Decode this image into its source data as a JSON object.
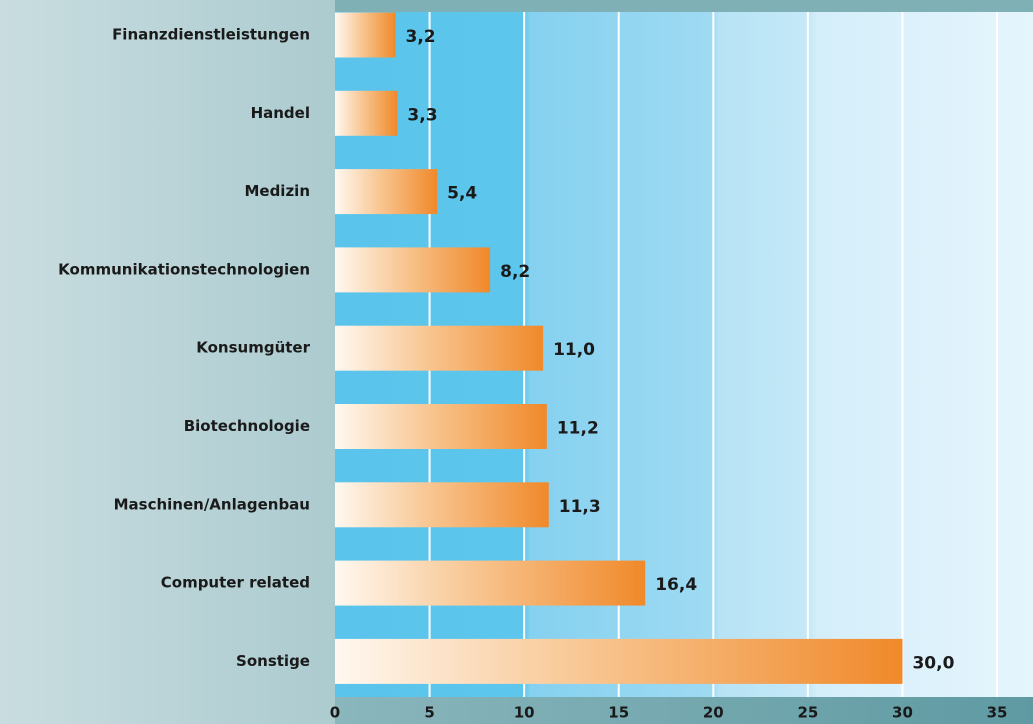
{
  "chart_data": {
    "type": "bar",
    "orientation": "horizontal",
    "categories": [
      "Finanzdienstleistungen",
      "Handel",
      "Medizin",
      "Kommunikationstechnologien",
      "Konsumgüter",
      "Biotechnologie",
      "Maschinen/Anlagenbau",
      "Computer related",
      "Sonstige"
    ],
    "values": [
      3.2,
      3.3,
      5.4,
      8.2,
      11.0,
      11.2,
      11.3,
      16.4,
      30.0
    ],
    "value_labels": [
      "3,2",
      "3,3",
      "5,4",
      "8,2",
      "11,0",
      "11,2",
      "11,3",
      "16,4",
      "30,0"
    ],
    "color": "#f0892a",
    "xlim": [
      0,
      36.9
    ],
    "xticks": [
      0,
      5,
      10,
      15,
      20,
      25,
      30,
      35
    ],
    "grid": true
  }
}
